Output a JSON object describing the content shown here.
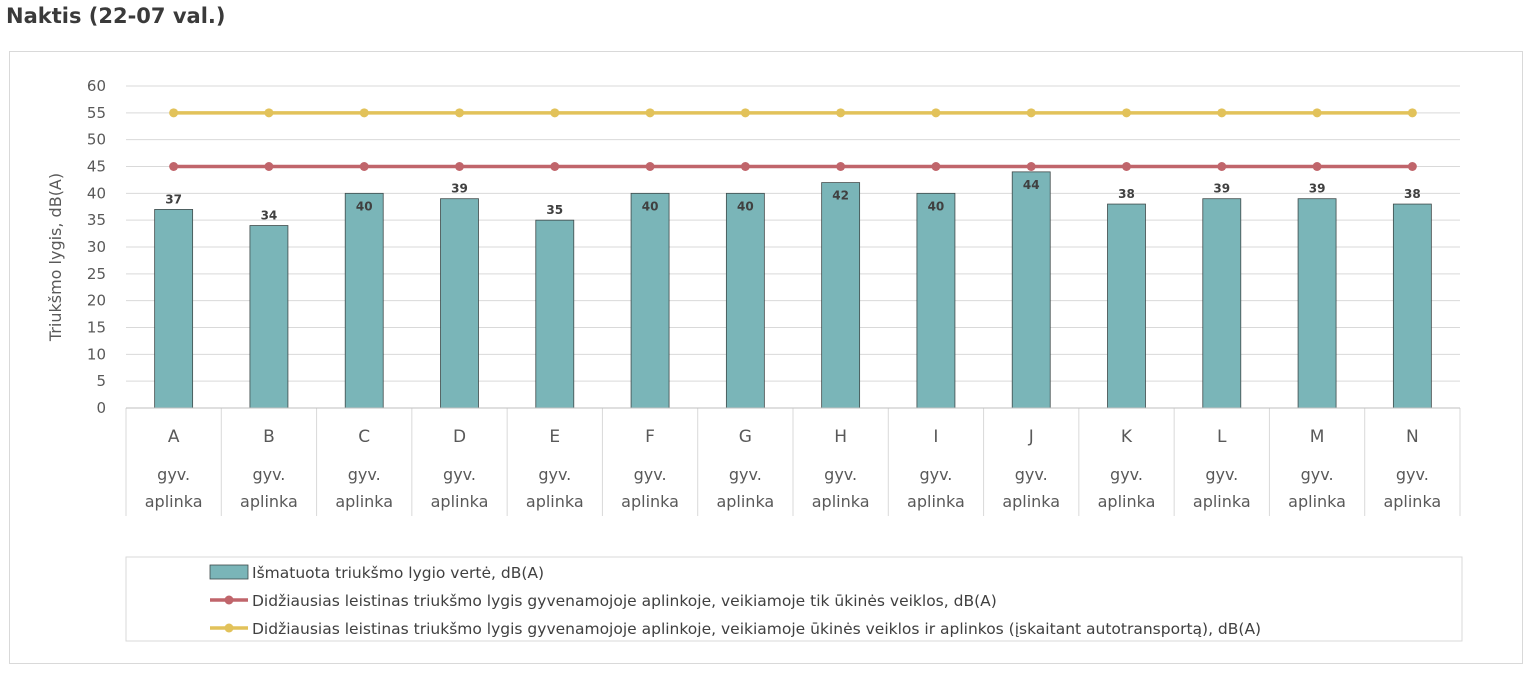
{
  "page": {
    "title": "Naktis (22-07 val.)"
  },
  "chart_data": {
    "type": "bar",
    "title": "",
    "ylabel": "Triukšmo lygis, dB(A)",
    "ylim": [
      0,
      60
    ],
    "yticks": [
      0,
      5,
      10,
      15,
      20,
      25,
      30,
      35,
      40,
      45,
      50,
      55,
      60
    ],
    "grid": true,
    "legend_position": "bottom",
    "categories": [
      "A",
      "B",
      "C",
      "D",
      "E",
      "F",
      "G",
      "H",
      "I",
      "J",
      "K",
      "L",
      "M",
      "N"
    ],
    "sub_category_label": "gyv. aplinka",
    "series": [
      {
        "name": "Išmatuota triukšmo lygio vertė, dB(A)",
        "kind": "bar",
        "color": "#7ab5b8",
        "values": [
          37,
          34,
          40,
          39,
          35,
          40,
          40,
          42,
          40,
          44,
          38,
          39,
          39,
          38
        ]
      },
      {
        "name": "Didžiausias leistinas triukšmo lygis gyvenamojoje aplinkoje, veikiamoje tik ūkinės veiklos,  dB(A)",
        "kind": "line",
        "color": "#c0656b",
        "values": [
          45,
          45,
          45,
          45,
          45,
          45,
          45,
          45,
          45,
          45,
          45,
          45,
          45,
          45
        ]
      },
      {
        "name": "Didžiausias leistinas triukšmo lygis gyvenamojoje aplinkoje, veikiamoje ūkinės veiklos ir aplinkos (įskaitant autotransportą),  dB(A)",
        "kind": "line",
        "color": "#e2c25a",
        "values": [
          55,
          55,
          55,
          55,
          55,
          55,
          55,
          55,
          55,
          55,
          55,
          55,
          55,
          55
        ]
      }
    ]
  }
}
